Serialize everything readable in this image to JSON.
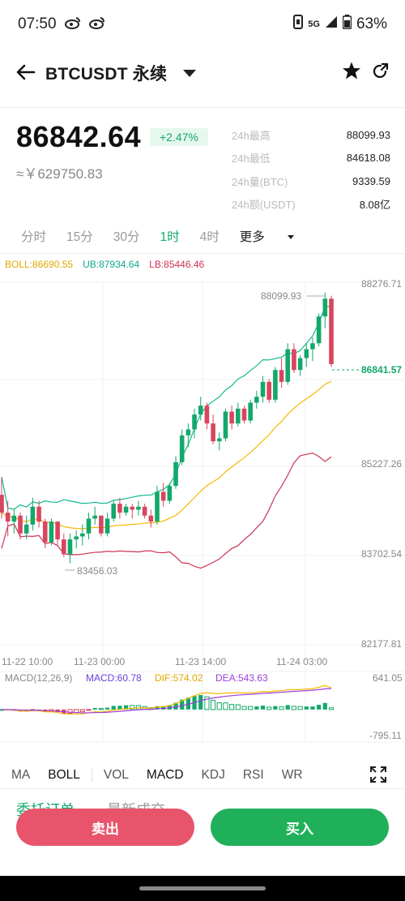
{
  "status_bar": {
    "time": "07:50",
    "left_icons": [
      "weibo-icon",
      "weibo-icon"
    ],
    "network": "5G",
    "battery": "63%"
  },
  "header": {
    "back_icon": "arrow-left-icon",
    "title": "BTCUSDT 永续",
    "star_icon": "star-icon",
    "share_icon": "share-icon"
  },
  "ticker": {
    "price": "86842.64",
    "change": "+2.47%",
    "cny": "≈￥629750.83",
    "stats": [
      {
        "label": "24h最高",
        "value": "88099.93"
      },
      {
        "label": "24h最低",
        "value": "84618.08"
      },
      {
        "label": "24h量(BTC)",
        "value": "9339.59"
      },
      {
        "label": "24h额(USDT)",
        "value": "8.08亿"
      }
    ]
  },
  "intervals": [
    "分时",
    "15分",
    "30分",
    "1时",
    "4时",
    "更多"
  ],
  "active_interval": "1时",
  "boll": {
    "boll": "BOLL:86690.55",
    "ub": "UB:87934.64",
    "lb": "LB:85446.46"
  },
  "price_axis": [
    "88276.71",
    "85227.26",
    "83702.54",
    "82177.81"
  ],
  "current_price_tag": "86841.57",
  "high_label": "88099.93",
  "low_label": "83456.03",
  "time_axis": [
    "11-22 10:00",
    "11-23 00:00",
    "11-23 14:00",
    "11-24 03:00"
  ],
  "macd": {
    "title": "MACD(12,26,9)",
    "macd": "MACD:60.78",
    "dif": "DIF:574.02",
    "dea": "DEA:543.63",
    "max": "641.05",
    "min": "-795.11"
  },
  "indicator_tabs": [
    "MA",
    "BOLL",
    "VOL",
    "MACD",
    "KDJ",
    "RSI",
    "WR"
  ],
  "bottom_tabs": [
    "委托订单",
    "最新成交"
  ],
  "buttons": {
    "sell": "卖出",
    "buy": "买入"
  },
  "colors": {
    "up": "#13a86b",
    "down": "#d9455f",
    "boll_mid": "#f5b800",
    "ub": "#13b890",
    "lb": "#cc3355",
    "dif": "#f5b800",
    "dea": "#9b3fd9"
  },
  "chart_data": {
    "type": "candlestick",
    "ylim": [
      82177.81,
      88276.71
    ],
    "candles": [
      [
        84700,
        85000,
        84300,
        84400
      ],
      [
        84400,
        84600,
        84000,
        84250
      ],
      [
        84250,
        84450,
        84050,
        84350
      ],
      [
        84350,
        84400,
        83950,
        84050
      ],
      [
        84050,
        84350,
        83950,
        84200
      ],
      [
        84200,
        84650,
        84100,
        84500
      ],
      [
        84500,
        84600,
        84150,
        84250
      ],
      [
        84250,
        84300,
        83800,
        83900
      ],
      [
        83900,
        84300,
        83850,
        84250
      ],
      [
        84250,
        84250,
        83850,
        83950
      ],
      [
        83950,
        84050,
        83650,
        83700
      ],
      [
        83700,
        84050,
        83550,
        83950
      ],
      [
        83950,
        84100,
        83800,
        84000
      ],
      [
        84000,
        84200,
        83850,
        84050
      ],
      [
        84050,
        84400,
        83950,
        84300
      ],
      [
        84300,
        84500,
        84200,
        84350
      ],
      [
        84350,
        84350,
        84000,
        84050
      ],
      [
        84050,
        84400,
        84000,
        84300
      ],
      [
        84300,
        84600,
        84250,
        84550
      ],
      [
        84550,
        84650,
        84300,
        84400
      ],
      [
        84400,
        84550,
        84350,
        84500
      ],
      [
        84500,
        84550,
        84300,
        84450
      ],
      [
        84450,
        84600,
        84350,
        84500
      ],
      [
        84500,
        84550,
        84300,
        84350
      ],
      [
        84350,
        84450,
        84150,
        84250
      ],
      [
        84250,
        84850,
        84200,
        84750
      ],
      [
        84750,
        84900,
        84500,
        84600
      ],
      [
        84600,
        84900,
        84550,
        84850
      ],
      [
        84850,
        85350,
        84800,
        85250
      ],
      [
        85250,
        85800,
        85200,
        85700
      ],
      [
        85700,
        85900,
        85500,
        85800
      ],
      [
        85800,
        86150,
        85650,
        86050
      ],
      [
        86050,
        86350,
        85950,
        86200
      ],
      [
        86200,
        86250,
        85800,
        85900
      ],
      [
        85900,
        86050,
        85550,
        85600
      ],
      [
        85600,
        85750,
        85450,
        85650
      ],
      [
        85650,
        86150,
        85600,
        86100
      ],
      [
        86100,
        86200,
        85800,
        85900
      ],
      [
        85900,
        86250,
        85850,
        86150
      ],
      [
        86150,
        86200,
        85900,
        85950
      ],
      [
        85950,
        86300,
        85900,
        86250
      ],
      [
        86250,
        86450,
        86150,
        86350
      ],
      [
        86350,
        86700,
        86250,
        86600
      ],
      [
        86600,
        86650,
        86250,
        86300
      ],
      [
        86300,
        86850,
        86250,
        86800
      ],
      [
        86800,
        87000,
        86500,
        86600
      ],
      [
        86600,
        87250,
        86550,
        87150
      ],
      [
        87150,
        87250,
        86750,
        86800
      ],
      [
        86800,
        87050,
        86700,
        87000
      ],
      [
        87000,
        87250,
        86850,
        87150
      ],
      [
        87150,
        87350,
        86950,
        87250
      ],
      [
        87250,
        87750,
        87200,
        87700
      ],
      [
        87700,
        88100,
        87500,
        88000
      ],
      [
        88000,
        88050,
        86850,
        86900
      ]
    ]
  }
}
